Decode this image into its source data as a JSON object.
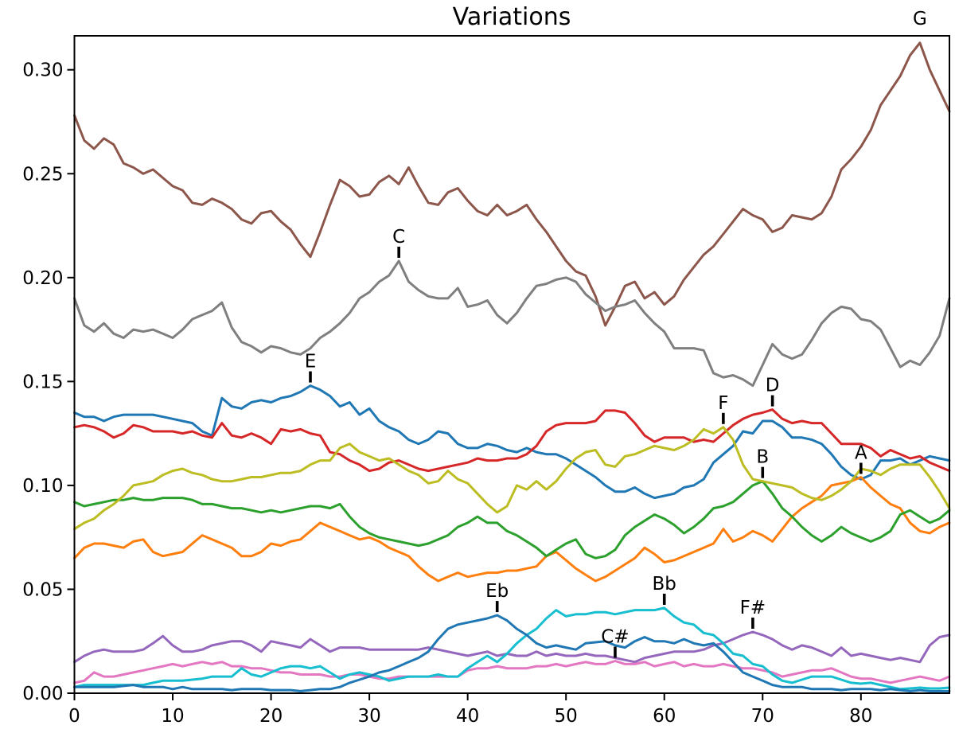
{
  "chart_data": {
    "type": "line",
    "title": "Variations",
    "xlabel": "",
    "ylabel": "",
    "xlim": [
      0,
      89
    ],
    "ylim": [
      0,
      0.316
    ],
    "x_ticks": [
      "0",
      "10",
      "20",
      "30",
      "40",
      "50",
      "60",
      "70",
      "80"
    ],
    "x_tick_values": [
      0,
      10,
      20,
      30,
      40,
      50,
      60,
      70,
      80
    ],
    "y_ticks": [
      "0.00",
      "0.05",
      "0.10",
      "0.15",
      "0.20",
      "0.25",
      "0.30"
    ],
    "y_tick_values": [
      0,
      0.05,
      0.1,
      0.15,
      0.2,
      0.25,
      0.3
    ],
    "grid": false,
    "legend_position": "none",
    "annotation_style": "note name above short vertical tick at series maximum",
    "series": [
      {
        "name": "E",
        "color": "#1f77b4",
        "label_x": 24,
        "values": [
          0.135,
          0.133,
          0.133,
          0.131,
          0.133,
          0.134,
          0.134,
          0.134,
          0.134,
          0.133,
          0.132,
          0.131,
          0.13,
          0.126,
          0.124,
          0.142,
          0.138,
          0.137,
          0.14,
          0.141,
          0.14,
          0.142,
          0.143,
          0.145,
          0.148,
          0.146,
          0.143,
          0.138,
          0.14,
          0.134,
          0.137,
          0.131,
          0.128,
          0.126,
          0.122,
          0.12,
          0.122,
          0.126,
          0.125,
          0.12,
          0.118,
          0.118,
          0.12,
          0.119,
          0.117,
          0.116,
          0.118,
          0.116,
          0.115,
          0.115,
          0.113,
          0.11,
          0.107,
          0.104,
          0.1,
          0.097,
          0.097,
          0.099,
          0.096,
          0.094,
          0.095,
          0.096,
          0.099,
          0.1,
          0.103,
          0.111,
          0.115,
          0.119,
          0.126,
          0.125,
          0.131,
          0.131,
          0.128,
          0.123,
          0.123,
          0.122,
          0.12,
          0.115,
          0.109,
          0.105,
          0.103,
          0.105,
          0.112,
          0.112,
          0.113,
          0.11,
          0.112,
          0.114,
          0.113,
          0.112
        ]
      },
      {
        "name": "A",
        "color": "#ff7f0e",
        "label_x": 80,
        "values": [
          0.065,
          0.07,
          0.072,
          0.072,
          0.071,
          0.07,
          0.073,
          0.074,
          0.068,
          0.066,
          0.067,
          0.068,
          0.072,
          0.076,
          0.074,
          0.072,
          0.07,
          0.066,
          0.066,
          0.068,
          0.072,
          0.071,
          0.073,
          0.074,
          0.078,
          0.082,
          0.08,
          0.078,
          0.076,
          0.074,
          0.075,
          0.073,
          0.07,
          0.068,
          0.066,
          0.061,
          0.057,
          0.054,
          0.056,
          0.058,
          0.056,
          0.057,
          0.058,
          0.058,
          0.059,
          0.059,
          0.06,
          0.061,
          0.066,
          0.068,
          0.064,
          0.06,
          0.057,
          0.054,
          0.056,
          0.059,
          0.062,
          0.065,
          0.07,
          0.067,
          0.063,
          0.064,
          0.066,
          0.068,
          0.07,
          0.072,
          0.079,
          0.073,
          0.075,
          0.078,
          0.076,
          0.073,
          0.079,
          0.085,
          0.089,
          0.092,
          0.095,
          0.1,
          0.101,
          0.102,
          0.104,
          0.099,
          0.095,
          0.091,
          0.089,
          0.082,
          0.078,
          0.077,
          0.08,
          0.082
        ]
      },
      {
        "name": "B",
        "color": "#2ca02c",
        "label_x": 70,
        "values": [
          0.092,
          0.09,
          0.091,
          0.092,
          0.093,
          0.093,
          0.094,
          0.093,
          0.093,
          0.094,
          0.094,
          0.094,
          0.093,
          0.091,
          0.091,
          0.09,
          0.089,
          0.089,
          0.088,
          0.087,
          0.088,
          0.087,
          0.088,
          0.089,
          0.09,
          0.09,
          0.089,
          0.091,
          0.085,
          0.08,
          0.077,
          0.075,
          0.074,
          0.073,
          0.072,
          0.071,
          0.072,
          0.074,
          0.076,
          0.08,
          0.082,
          0.085,
          0.082,
          0.082,
          0.078,
          0.076,
          0.073,
          0.07,
          0.066,
          0.069,
          0.072,
          0.074,
          0.067,
          0.065,
          0.066,
          0.069,
          0.076,
          0.08,
          0.083,
          0.086,
          0.084,
          0.081,
          0.077,
          0.08,
          0.084,
          0.089,
          0.09,
          0.092,
          0.096,
          0.1,
          0.102,
          0.096,
          0.089,
          0.085,
          0.08,
          0.076,
          0.073,
          0.076,
          0.08,
          0.077,
          0.075,
          0.073,
          0.075,
          0.078,
          0.086,
          0.088,
          0.085,
          0.082,
          0.084,
          0.088
        ]
      },
      {
        "name": "D",
        "color": "#d62728",
        "label_x": 71,
        "values": [
          0.128,
          0.129,
          0.128,
          0.126,
          0.123,
          0.125,
          0.129,
          0.128,
          0.126,
          0.126,
          0.126,
          0.125,
          0.126,
          0.124,
          0.123,
          0.13,
          0.124,
          0.123,
          0.125,
          0.123,
          0.12,
          0.127,
          0.126,
          0.127,
          0.125,
          0.124,
          0.116,
          0.115,
          0.112,
          0.11,
          0.107,
          0.108,
          0.111,
          0.112,
          0.11,
          0.108,
          0.107,
          0.108,
          0.109,
          0.11,
          0.111,
          0.113,
          0.112,
          0.112,
          0.113,
          0.113,
          0.115,
          0.119,
          0.126,
          0.129,
          0.13,
          0.13,
          0.13,
          0.131,
          0.136,
          0.136,
          0.135,
          0.13,
          0.124,
          0.121,
          0.123,
          0.123,
          0.123,
          0.121,
          0.122,
          0.121,
          0.125,
          0.129,
          0.132,
          0.134,
          0.135,
          0.1365,
          0.132,
          0.13,
          0.131,
          0.13,
          0.13,
          0.125,
          0.12,
          0.12,
          0.12,
          0.118,
          0.114,
          0.117,
          0.115,
          0.113,
          0.114,
          0.111,
          0.109,
          0.107
        ]
      },
      {
        "name": "F#",
        "color": "#9467bd",
        "label_x": 69,
        "values": [
          0.015,
          0.018,
          0.02,
          0.021,
          0.02,
          0.02,
          0.02,
          0.021,
          0.024,
          0.0275,
          0.023,
          0.02,
          0.02,
          0.021,
          0.023,
          0.024,
          0.025,
          0.025,
          0.023,
          0.02,
          0.025,
          0.024,
          0.023,
          0.022,
          0.026,
          0.023,
          0.02,
          0.022,
          0.022,
          0.022,
          0.021,
          0.021,
          0.021,
          0.021,
          0.021,
          0.021,
          0.022,
          0.021,
          0.02,
          0.019,
          0.018,
          0.019,
          0.02,
          0.018,
          0.019,
          0.018,
          0.018,
          0.02,
          0.018,
          0.019,
          0.018,
          0.018,
          0.019,
          0.018,
          0.018,
          0.017,
          0.016,
          0.015,
          0.017,
          0.018,
          0.019,
          0.02,
          0.02,
          0.02,
          0.021,
          0.023,
          0.024,
          0.026,
          0.028,
          0.0295,
          0.028,
          0.026,
          0.023,
          0.021,
          0.023,
          0.022,
          0.02,
          0.018,
          0.022,
          0.018,
          0.019,
          0.018,
          0.017,
          0.016,
          0.017,
          0.016,
          0.015,
          0.023,
          0.027,
          0.028
        ]
      },
      {
        "name": "G",
        "color": "#8c564b",
        "label_x": 86,
        "values": [
          0.278,
          0.266,
          0.262,
          0.267,
          0.264,
          0.255,
          0.253,
          0.25,
          0.252,
          0.248,
          0.244,
          0.242,
          0.236,
          0.235,
          0.238,
          0.236,
          0.233,
          0.228,
          0.226,
          0.231,
          0.232,
          0.227,
          0.223,
          0.216,
          0.21,
          0.222,
          0.235,
          0.247,
          0.244,
          0.239,
          0.24,
          0.246,
          0.249,
          0.245,
          0.253,
          0.244,
          0.236,
          0.235,
          0.241,
          0.243,
          0.237,
          0.232,
          0.23,
          0.235,
          0.23,
          0.232,
          0.235,
          0.228,
          0.222,
          0.215,
          0.208,
          0.203,
          0.201,
          0.191,
          0.177,
          0.186,
          0.196,
          0.198,
          0.19,
          0.193,
          0.187,
          0.191,
          0.199,
          0.205,
          0.211,
          0.215,
          0.221,
          0.227,
          0.233,
          0.23,
          0.228,
          0.222,
          0.224,
          0.23,
          0.229,
          0.228,
          0.231,
          0.239,
          0.252,
          0.257,
          0.263,
          0.271,
          0.283,
          0.29,
          0.297,
          0.307,
          0.313,
          0.3,
          0.29,
          0.28
        ]
      },
      {
        "name": "C#",
        "color": "#e377c2",
        "label_x": 55,
        "values": [
          0.005,
          0.006,
          0.01,
          0.008,
          0.008,
          0.009,
          0.01,
          0.011,
          0.012,
          0.013,
          0.014,
          0.013,
          0.014,
          0.015,
          0.014,
          0.015,
          0.013,
          0.013,
          0.012,
          0.012,
          0.011,
          0.01,
          0.01,
          0.009,
          0.009,
          0.009,
          0.008,
          0.008,
          0.009,
          0.009,
          0.008,
          0.007,
          0.007,
          0.008,
          0.008,
          0.008,
          0.008,
          0.008,
          0.008,
          0.008,
          0.011,
          0.012,
          0.012,
          0.013,
          0.012,
          0.012,
          0.012,
          0.013,
          0.013,
          0.014,
          0.013,
          0.014,
          0.015,
          0.014,
          0.014,
          0.0155,
          0.014,
          0.014,
          0.015,
          0.013,
          0.014,
          0.015,
          0.013,
          0.014,
          0.013,
          0.013,
          0.014,
          0.013,
          0.012,
          0.012,
          0.011,
          0.01,
          0.008,
          0.009,
          0.01,
          0.011,
          0.011,
          0.012,
          0.01,
          0.008,
          0.007,
          0.007,
          0.006,
          0.005,
          0.006,
          0.007,
          0.008,
          0.007,
          0.006,
          0.008
        ]
      },
      {
        "name": "C",
        "color": "#7f7f7f",
        "label_x": 33,
        "values": [
          0.19,
          0.177,
          0.174,
          0.178,
          0.173,
          0.171,
          0.175,
          0.174,
          0.175,
          0.173,
          0.171,
          0.175,
          0.18,
          0.182,
          0.184,
          0.188,
          0.176,
          0.169,
          0.167,
          0.164,
          0.167,
          0.166,
          0.164,
          0.163,
          0.166,
          0.171,
          0.174,
          0.178,
          0.183,
          0.19,
          0.193,
          0.198,
          0.201,
          0.208,
          0.198,
          0.194,
          0.191,
          0.19,
          0.19,
          0.195,
          0.186,
          0.187,
          0.189,
          0.182,
          0.178,
          0.183,
          0.19,
          0.196,
          0.197,
          0.199,
          0.2,
          0.198,
          0.192,
          0.188,
          0.184,
          0.186,
          0.187,
          0.189,
          0.183,
          0.178,
          0.174,
          0.166,
          0.166,
          0.166,
          0.165,
          0.154,
          0.152,
          0.153,
          0.151,
          0.148,
          0.158,
          0.168,
          0.163,
          0.161,
          0.163,
          0.17,
          0.178,
          0.183,
          0.186,
          0.185,
          0.18,
          0.179,
          0.175,
          0.166,
          0.157,
          0.16,
          0.158,
          0.164,
          0.172,
          0.19
        ]
      },
      {
        "name": "F",
        "color": "#bcbd22",
        "label_x": 66,
        "values": [
          0.079,
          0.082,
          0.084,
          0.088,
          0.091,
          0.095,
          0.1,
          0.101,
          0.102,
          0.105,
          0.107,
          0.108,
          0.106,
          0.105,
          0.103,
          0.102,
          0.102,
          0.103,
          0.104,
          0.104,
          0.105,
          0.106,
          0.106,
          0.107,
          0.11,
          0.112,
          0.112,
          0.118,
          0.12,
          0.116,
          0.114,
          0.112,
          0.113,
          0.11,
          0.107,
          0.105,
          0.101,
          0.102,
          0.107,
          0.103,
          0.101,
          0.096,
          0.091,
          0.087,
          0.09,
          0.1,
          0.098,
          0.102,
          0.098,
          0.102,
          0.108,
          0.113,
          0.116,
          0.117,
          0.11,
          0.109,
          0.114,
          0.115,
          0.117,
          0.119,
          0.118,
          0.117,
          0.119,
          0.122,
          0.127,
          0.125,
          0.128,
          0.122,
          0.11,
          0.103,
          0.102,
          0.101,
          0.1,
          0.099,
          0.096,
          0.094,
          0.093,
          0.095,
          0.098,
          0.102,
          0.108,
          0.107,
          0.105,
          0.108,
          0.11,
          0.11,
          0.11,
          0.104,
          0.097,
          0.089
        ]
      },
      {
        "name": "Bb",
        "color": "#17becf",
        "label_x": 60,
        "values": [
          0.003,
          0.004,
          0.004,
          0.004,
          0.004,
          0.004,
          0.004,
          0.004,
          0.005,
          0.006,
          0.006,
          0.006,
          0.0065,
          0.007,
          0.008,
          0.008,
          0.008,
          0.012,
          0.009,
          0.008,
          0.01,
          0.012,
          0.013,
          0.013,
          0.012,
          0.013,
          0.01,
          0.007,
          0.009,
          0.01,
          0.009,
          0.008,
          0.006,
          0.007,
          0.008,
          0.008,
          0.008,
          0.009,
          0.008,
          0.008,
          0.012,
          0.015,
          0.018,
          0.015,
          0.019,
          0.024,
          0.028,
          0.031,
          0.036,
          0.04,
          0.037,
          0.038,
          0.038,
          0.039,
          0.039,
          0.038,
          0.039,
          0.04,
          0.04,
          0.04,
          0.041,
          0.037,
          0.034,
          0.033,
          0.029,
          0.028,
          0.024,
          0.019,
          0.018,
          0.014,
          0.013,
          0.009,
          0.006,
          0.005,
          0.0065,
          0.008,
          0.008,
          0.008,
          0.0065,
          0.005,
          0.0046,
          0.005,
          0.004,
          0.003,
          0.002,
          0.0023,
          0.0027,
          0.0023,
          0.0023,
          0.0027
        ]
      },
      {
        "name": "Eb",
        "color": "#1f77b4",
        "label_x": 43,
        "values": [
          0.003,
          0.003,
          0.003,
          0.003,
          0.003,
          0.0035,
          0.004,
          0.003,
          0.003,
          0.003,
          0.002,
          0.003,
          0.002,
          0.002,
          0.002,
          0.002,
          0.0015,
          0.002,
          0.002,
          0.002,
          0.0015,
          0.0015,
          0.0015,
          0.001,
          0.0015,
          0.002,
          0.002,
          0.003,
          0.005,
          0.0065,
          0.008,
          0.01,
          0.011,
          0.013,
          0.015,
          0.017,
          0.02,
          0.026,
          0.031,
          0.033,
          0.034,
          0.035,
          0.036,
          0.0375,
          0.035,
          0.031,
          0.028,
          0.024,
          0.022,
          0.023,
          0.022,
          0.021,
          0.024,
          0.0245,
          0.025,
          0.023,
          0.022,
          0.025,
          0.027,
          0.025,
          0.025,
          0.024,
          0.026,
          0.024,
          0.023,
          0.024,
          0.02,
          0.015,
          0.01,
          0.008,
          0.006,
          0.004,
          0.003,
          0.003,
          0.003,
          0.002,
          0.002,
          0.002,
          0.0015,
          0.002,
          0.002,
          0.002,
          0.0015,
          0.002,
          0.0015,
          0.001,
          0.0015,
          0.001,
          0.001,
          0.001
        ]
      }
    ]
  }
}
